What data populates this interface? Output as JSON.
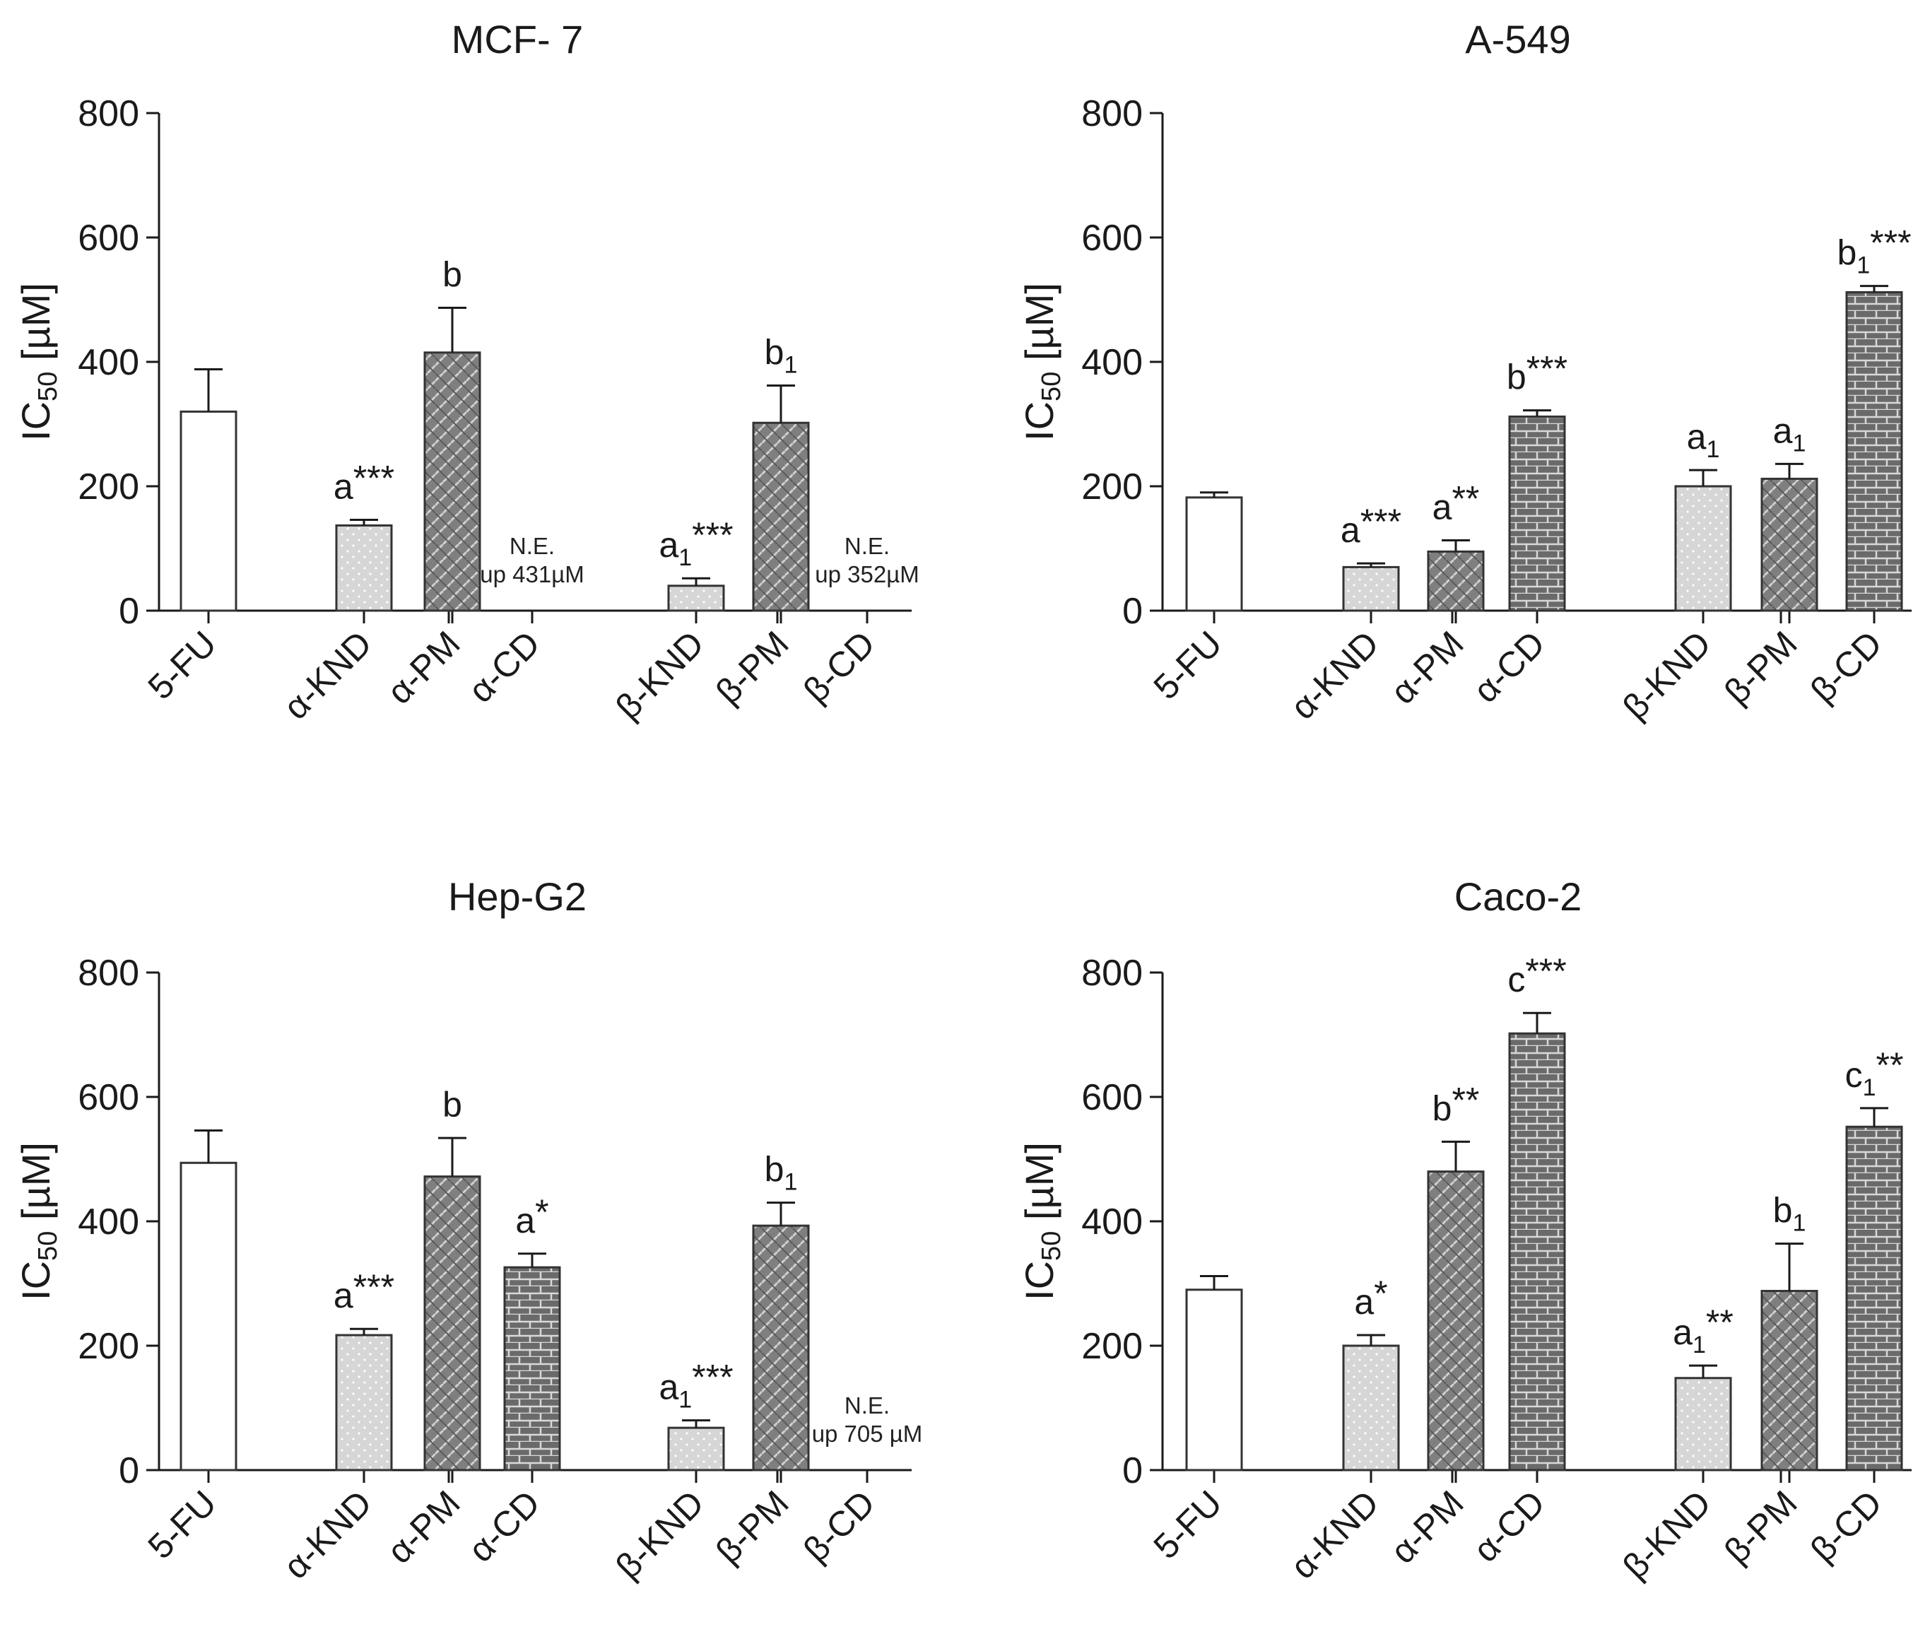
{
  "figure": {
    "y_axis_label_main": "IC",
    "y_axis_label_sub": "50",
    "y_axis_label_unit": " [µM]"
  },
  "colors": {
    "axis": "#1a1a1a",
    "bar_outline": "#333333",
    "open_fill": "#ffffff",
    "light_fill": "#d4d4d4",
    "dark_fill": "#7a7a7a",
    "brick_fill": "#6e6e6e"
  },
  "chart_data": [
    {
      "type": "bar",
      "title": "MCF- 7",
      "ylabel": "IC50 [µM]",
      "ylim": [
        0,
        800
      ],
      "yticks": [
        0,
        200,
        400,
        600,
        800
      ],
      "categories": [
        "5-FU",
        "α-KND",
        "α-PM",
        "α-CD",
        "β-KND",
        "β-PM",
        "β-CD"
      ],
      "values": [
        320,
        137,
        415,
        null,
        40,
        302,
        null
      ],
      "errors": [
        68,
        9,
        72,
        null,
        12,
        60,
        null
      ],
      "patterns": [
        "open",
        "dots",
        "weave",
        "brick",
        "dots",
        "weave",
        "brick"
      ],
      "annotations": [
        {
          "base": "",
          "sub": "",
          "stars": ""
        },
        {
          "base": "a",
          "sub": "",
          "stars": "***"
        },
        {
          "base": "b",
          "sub": "",
          "stars": ""
        },
        {
          "base": "",
          "sub": "",
          "stars": ""
        },
        {
          "base": "a",
          "sub": "1",
          "stars": "***"
        },
        {
          "base": "b",
          "sub": "1",
          "stars": ""
        },
        {
          "base": "",
          "sub": "",
          "stars": ""
        }
      ],
      "notes": [
        {
          "category": "α-CD",
          "lines": [
            "N.E.",
            "up 431µM"
          ]
        },
        {
          "category": "β-CD",
          "lines": [
            "N.E.",
            "up 352µM"
          ]
        }
      ]
    },
    {
      "type": "bar",
      "title": "A-549",
      "ylabel": "IC50 [µM]",
      "ylim": [
        0,
        800
      ],
      "yticks": [
        0,
        200,
        400,
        600,
        800
      ],
      "categories": [
        "5-FU",
        "α-KND",
        "α-PM",
        "α-CD",
        "β-KND",
        "β-PM",
        "β-CD"
      ],
      "values": [
        182,
        70,
        95,
        312,
        200,
        212,
        512
      ],
      "errors": [
        8,
        6,
        18,
        10,
        26,
        24,
        10
      ],
      "patterns": [
        "open",
        "dots",
        "weave",
        "brick",
        "dots",
        "weave",
        "brick"
      ],
      "annotations": [
        {
          "base": "",
          "sub": "",
          "stars": ""
        },
        {
          "base": "a",
          "sub": "",
          "stars": "***"
        },
        {
          "base": "a",
          "sub": "",
          "stars": "**"
        },
        {
          "base": "b",
          "sub": "",
          "stars": "***"
        },
        {
          "base": "a",
          "sub": "1",
          "stars": ""
        },
        {
          "base": "a",
          "sub": "1",
          "stars": ""
        },
        {
          "base": "b",
          "sub": "1",
          "stars": "***"
        }
      ],
      "notes": []
    },
    {
      "type": "bar",
      "title": "Hep-G2",
      "ylabel": "IC50 [µM]",
      "ylim": [
        0,
        800
      ],
      "yticks": [
        0,
        200,
        400,
        600,
        800
      ],
      "categories": [
        "5-FU",
        "α-KND",
        "α-PM",
        "α-CD",
        "β-KND",
        "β-PM",
        "β-CD"
      ],
      "values": [
        494,
        217,
        472,
        326,
        68,
        393,
        null
      ],
      "errors": [
        52,
        10,
        62,
        22,
        12,
        37,
        null
      ],
      "patterns": [
        "open",
        "dots",
        "weave",
        "brick",
        "dots",
        "weave",
        "brick"
      ],
      "annotations": [
        {
          "base": "",
          "sub": "",
          "stars": ""
        },
        {
          "base": "a",
          "sub": "",
          "stars": "***"
        },
        {
          "base": "b",
          "sub": "",
          "stars": ""
        },
        {
          "base": "a",
          "sub": "",
          "stars": "*"
        },
        {
          "base": "a",
          "sub": "1",
          "stars": "***"
        },
        {
          "base": "b",
          "sub": "1",
          "stars": ""
        },
        {
          "base": "",
          "sub": "",
          "stars": ""
        }
      ],
      "notes": [
        {
          "category": "β-CD",
          "lines": [
            "N.E.",
            "up 705 µM"
          ]
        }
      ]
    },
    {
      "type": "bar",
      "title": "Caco-2",
      "ylabel": "IC50 [µM]",
      "ylim": [
        0,
        800
      ],
      "yticks": [
        0,
        200,
        400,
        600,
        800
      ],
      "categories": [
        "5-FU",
        "α-KND",
        "α-PM",
        "α-CD",
        "β-KND",
        "β-PM",
        "β-CD"
      ],
      "values": [
        290,
        200,
        480,
        702,
        148,
        288,
        552
      ],
      "errors": [
        22,
        17,
        48,
        33,
        20,
        76,
        30
      ],
      "patterns": [
        "open",
        "dots",
        "weave",
        "brick",
        "dots",
        "weave",
        "brick"
      ],
      "annotations": [
        {
          "base": "",
          "sub": "",
          "stars": ""
        },
        {
          "base": "a",
          "sub": "",
          "stars": "*"
        },
        {
          "base": "b",
          "sub": "",
          "stars": "**"
        },
        {
          "base": "c",
          "sub": "",
          "stars": "***"
        },
        {
          "base": "a",
          "sub": "1",
          "stars": "**"
        },
        {
          "base": "b",
          "sub": "1",
          "stars": ""
        },
        {
          "base": "c",
          "sub": "1",
          "stars": "**"
        }
      ],
      "notes": []
    }
  ]
}
